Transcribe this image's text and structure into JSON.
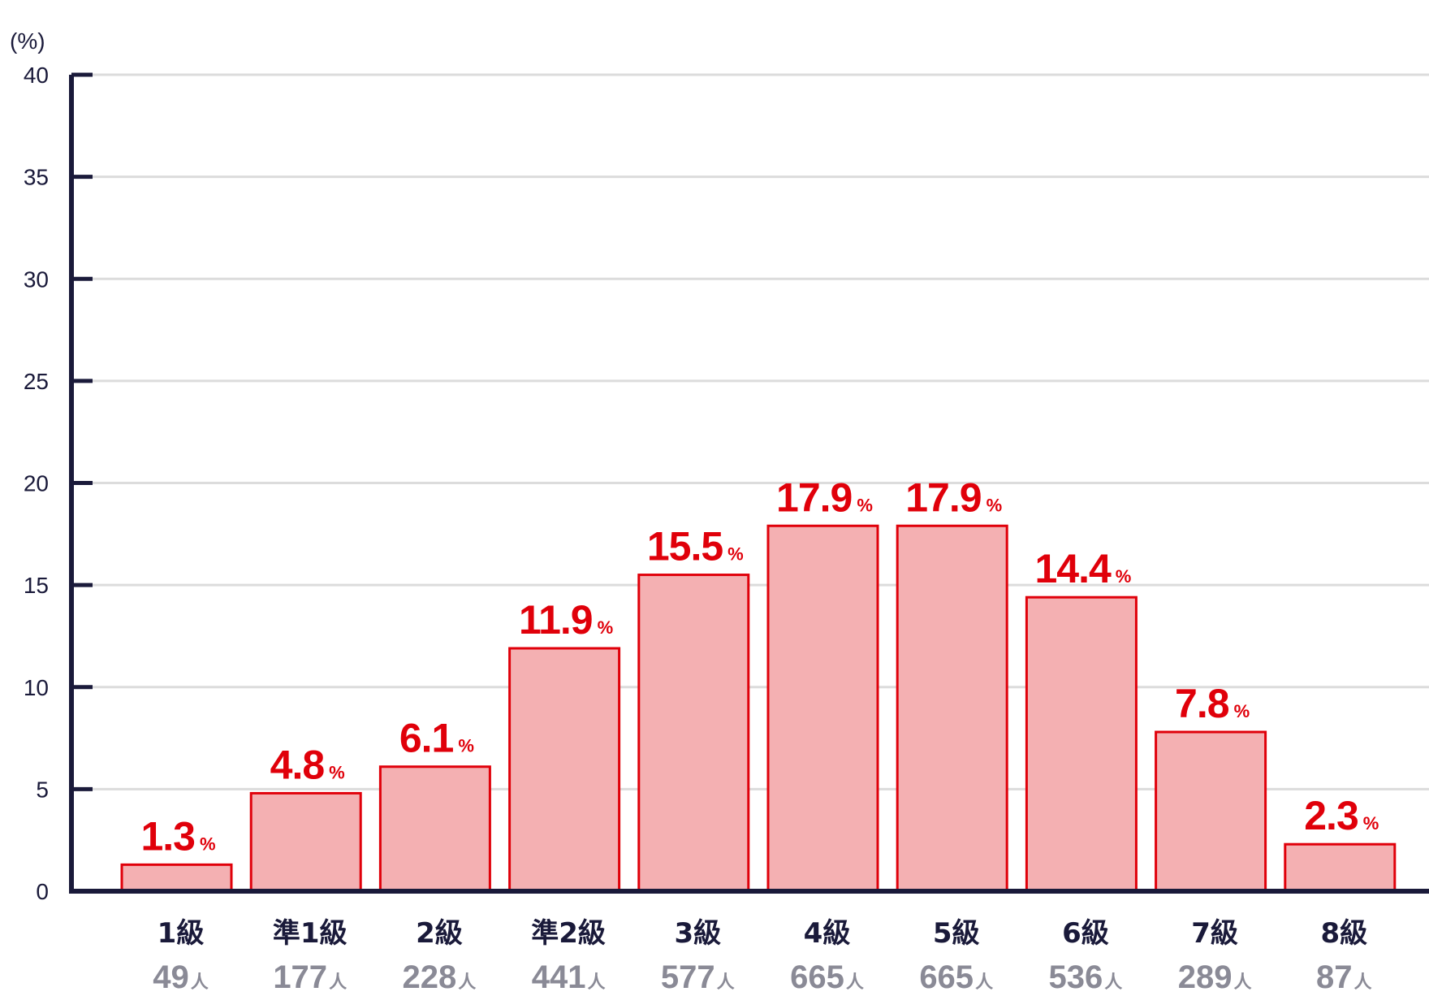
{
  "chart_data": {
    "type": "bar",
    "y_unit": "(%)",
    "ylim": [
      0,
      40
    ],
    "yticks": [
      0,
      5,
      10,
      15,
      20,
      25,
      30,
      35,
      40
    ],
    "grid": true,
    "categories": [
      "1級",
      "準1級",
      "2級",
      "準2級",
      "3級",
      "4級",
      "5級",
      "6級",
      "7級",
      "8級"
    ],
    "values": [
      1.3,
      4.8,
      6.1,
      11.9,
      15.5,
      17.9,
      17.9,
      14.4,
      7.8,
      2.3
    ],
    "value_labels": [
      "1.3",
      "4.8",
      "6.1",
      "11.9",
      "15.5",
      "17.9",
      "17.9",
      "14.4",
      "7.8",
      "2.3"
    ],
    "value_unit": "%",
    "counts": [
      "49",
      "177",
      "228",
      "441",
      "577",
      "665",
      "665",
      "536",
      "289",
      "87"
    ],
    "count_unit": "人",
    "colors": {
      "bar_fill": "#f4b0b2",
      "bar_stroke": "#e0000a",
      "axis": "#1a1a3a",
      "grid": "#dcdcdc",
      "count_text": "#8a8a96"
    }
  }
}
